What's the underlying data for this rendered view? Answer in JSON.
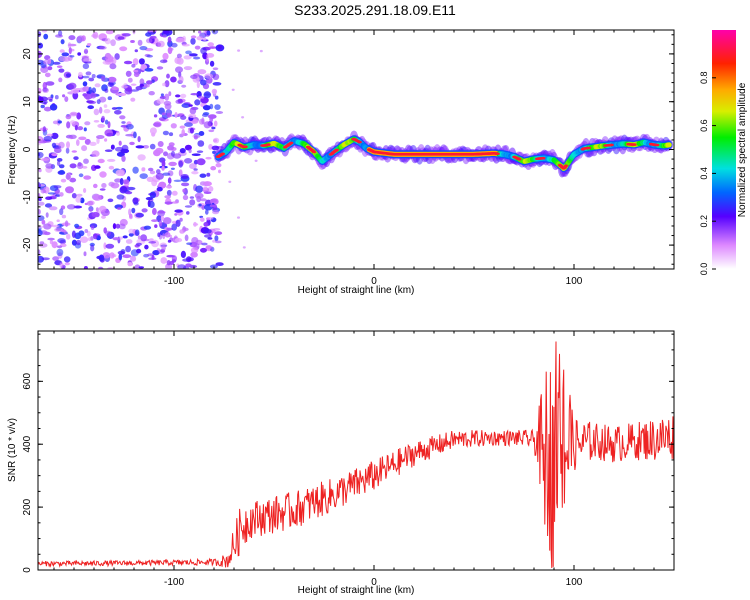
{
  "title": "S233.2025.291.18.09.E11",
  "colors": {
    "trace": "#ee2222",
    "noise": "#8a2be2",
    "axis": "#000000"
  },
  "chart_data": [
    {
      "type": "heatmap",
      "name": "spectrogram",
      "xlabel": "Height of straight line (km)",
      "ylabel": "Frequency (Hz)",
      "xlim": [
        -168,
        150
      ],
      "ylim": [
        -25,
        25
      ],
      "xticks": [
        -100,
        0,
        100
      ],
      "xtick_labels": [
        "-100",
        "0",
        "100"
      ],
      "yticks": [
        -20,
        -10,
        0,
        10,
        20
      ],
      "ytick_labels": [
        "-20",
        "-10",
        "0",
        "10",
        "20"
      ],
      "noise_region_x": [
        -168,
        -77
      ],
      "signal_track": {
        "x": [
          -78,
          -74,
          -70,
          -65,
          -60,
          -55,
          -50,
          -45,
          -40,
          -35,
          -30,
          -26,
          -23,
          -20,
          -15,
          -10,
          -7,
          -4,
          0,
          10,
          20,
          30,
          40,
          50,
          60,
          65,
          70,
          75,
          80,
          85,
          90,
          95,
          100,
          105,
          110,
          115,
          120,
          125,
          130,
          135,
          140,
          145,
          148
        ],
        "freq": [
          -1.5,
          -0.5,
          1.5,
          0.5,
          1.0,
          0.8,
          1.3,
          0.3,
          1.8,
          1.2,
          -0.5,
          -2.5,
          -1.5,
          -0.5,
          1.0,
          2.2,
          1.5,
          0.3,
          -0.5,
          -1.0,
          -1.0,
          -1.0,
          -1.0,
          -1.0,
          -0.8,
          -1.0,
          -1.5,
          -2.5,
          -2.0,
          -1.8,
          -2.2,
          -4.0,
          -1.0,
          0.2,
          0.5,
          0.8,
          1.0,
          1.2,
          1.0,
          1.5,
          1.0,
          0.8,
          1.0
        ]
      },
      "colorbar": {
        "label": "Normalized spectral amplitude",
        "range": [
          0,
          1
        ],
        "ticks": [
          0,
          0.2,
          0.4,
          0.6,
          0.8
        ],
        "tick_labels": [
          "0.0",
          "0.2",
          "0.4",
          "0.6",
          "0.8"
        ]
      }
    },
    {
      "type": "line",
      "name": "snr",
      "xlabel": "Height of straight line (km)",
      "ylabel": "SNR (10 * v/v)",
      "xlim": [
        -168,
        150
      ],
      "ylim": [
        0,
        760
      ],
      "xticks": [
        -100,
        0,
        100
      ],
      "xtick_labels": [
        "-100",
        "0",
        "100"
      ],
      "yticks": [
        0,
        200,
        400,
        600
      ],
      "ytick_labels": [
        "0",
        "200",
        "400",
        "600"
      ],
      "series": [
        {
          "name": "SNR",
          "x": [
            -168,
            -120,
            -80,
            -73,
            -70,
            -66,
            -62,
            -55,
            -40,
            -20,
            0,
            20,
            40,
            60,
            70,
            80,
            84,
            86,
            88,
            90,
            92,
            96,
            100,
            110,
            120,
            130,
            140,
            150
          ],
          "mean": [
            20,
            22,
            25,
            30,
            80,
            140,
            160,
            170,
            190,
            240,
            300,
            370,
            415,
            420,
            420,
            415,
            390,
            380,
            370,
            380,
            360,
            380,
            400,
            410,
            400,
            410,
            415,
            425
          ],
          "spread": [
            8,
            8,
            10,
            25,
            60,
            80,
            60,
            60,
            60,
            55,
            50,
            40,
            30,
            25,
            25,
            30,
            180,
            280,
            320,
            320,
            300,
            200,
            90,
            60,
            60,
            60,
            70,
            80
          ]
        }
      ]
    }
  ]
}
